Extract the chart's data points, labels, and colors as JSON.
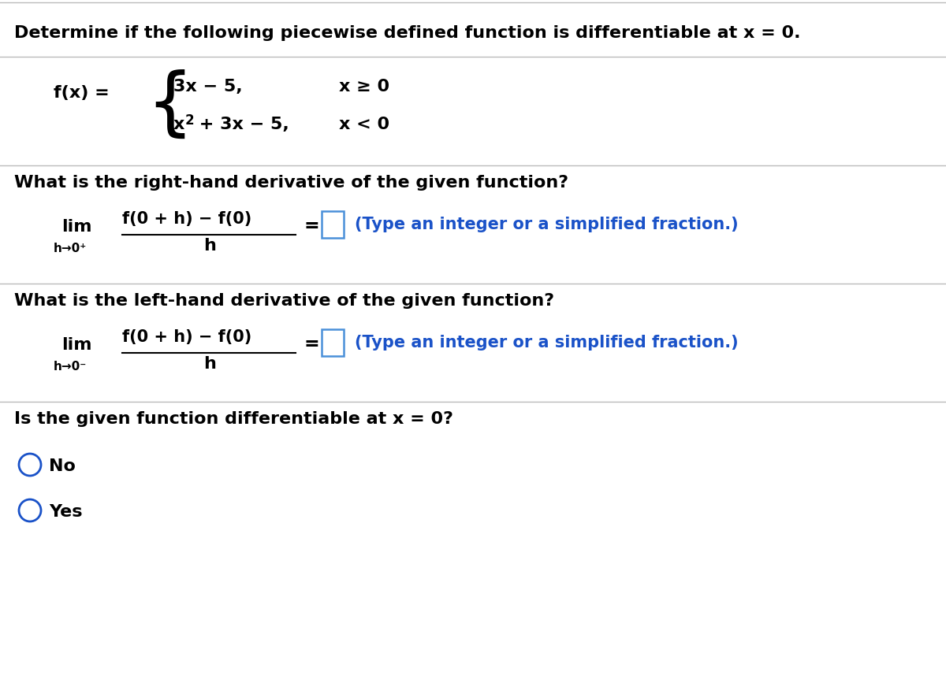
{
  "background_color": "#ffffff",
  "title_text": "Determine if the following piecewise defined function is differentiable at x = 0.",
  "q1_text": "What is the right-hand derivative of the given function?",
  "q2_text": "What is the left-hand derivative of the given function?",
  "q3_text": "Is the given function differentiable at x = 0?",
  "hint_text": "(Type an integer or a simplified fraction.)",
  "radio_no": "No",
  "radio_yes": "Yes",
  "math_color": "#000000",
  "blue_color": "#1a52c8",
  "box_color": "#4a90d9",
  "line_color": "#bbbbbb",
  "title_fontsize": 16,
  "question_fontsize": 16,
  "math_fontsize": 15,
  "small_fontsize": 11,
  "hint_fontsize": 15,
  "radio_fontsize": 16,
  "piece_fontsize": 15
}
